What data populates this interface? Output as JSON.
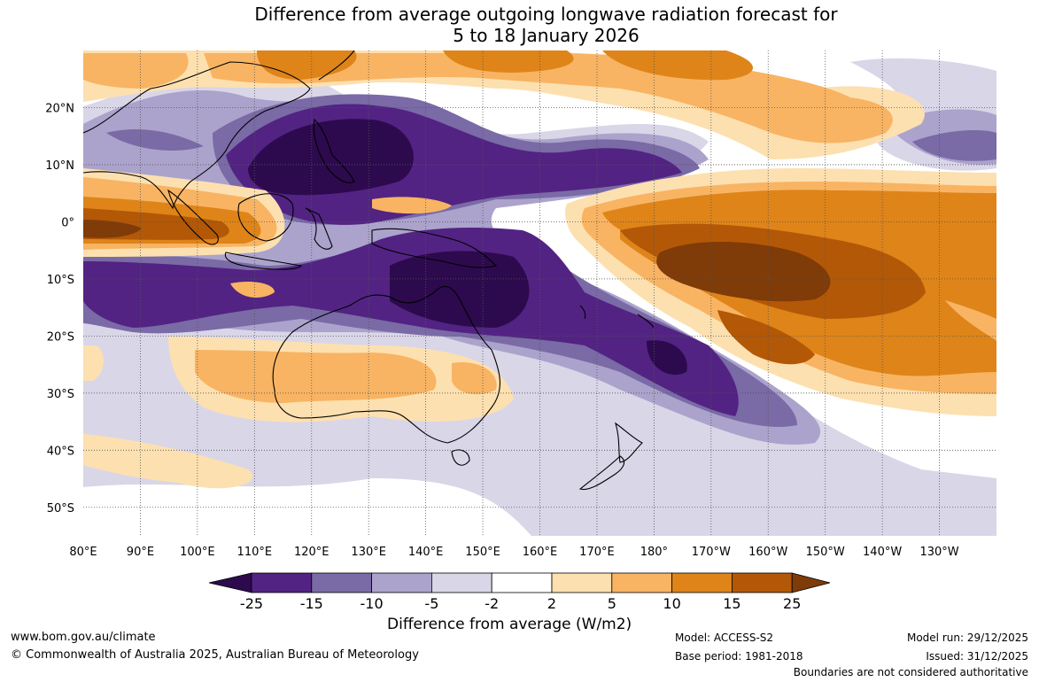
{
  "title": {
    "line1": "Difference from average outgoing longwave radiation forecast for",
    "line2": "5 to 18 January 2026"
  },
  "map": {
    "lon_labels": [
      "80°E",
      "90°E",
      "100°E",
      "110°E",
      "120°E",
      "130°E",
      "140°E",
      "150°E",
      "160°E",
      "170°E",
      "180°",
      "170°W",
      "160°W",
      "150°W",
      "140°W",
      "130°W"
    ],
    "lat_labels": [
      "20°N",
      "10°N",
      "0°",
      "10°S",
      "20°S",
      "30°S",
      "40°S",
      "50°S"
    ],
    "lat_values": [
      20,
      10,
      0,
      -10,
      -20,
      -30,
      -40,
      -50
    ],
    "lon_range": [
      80,
      240
    ],
    "lat_range": [
      -55,
      30
    ]
  },
  "legend": {
    "tick_labels": [
      "-25",
      "-15",
      "-10",
      "-5",
      "-2",
      "2",
      "5",
      "10",
      "15",
      "25"
    ],
    "colors": [
      "#2d0a4e",
      "#522383",
      "#7a6aa6",
      "#aba3cc",
      "#d9d6e8",
      "#ffffff",
      "#fde0b0",
      "#f8b463",
      "#de8419",
      "#b35806",
      "#7f3b08"
    ],
    "title": "Difference from average (W/m2)"
  },
  "footer": {
    "website": "www.bom.gov.au/climate",
    "copyright": "© Commonwealth of Australia 2025, Australian Bureau of Meteorology",
    "model": "Model: ACCESS-S2",
    "base_period": "Base period: 1981-2018",
    "model_run": "Model run: 29/12/2025",
    "issued": "Issued: 31/12/2025",
    "disclaimer": "Boundaries are not considered authoritative"
  }
}
